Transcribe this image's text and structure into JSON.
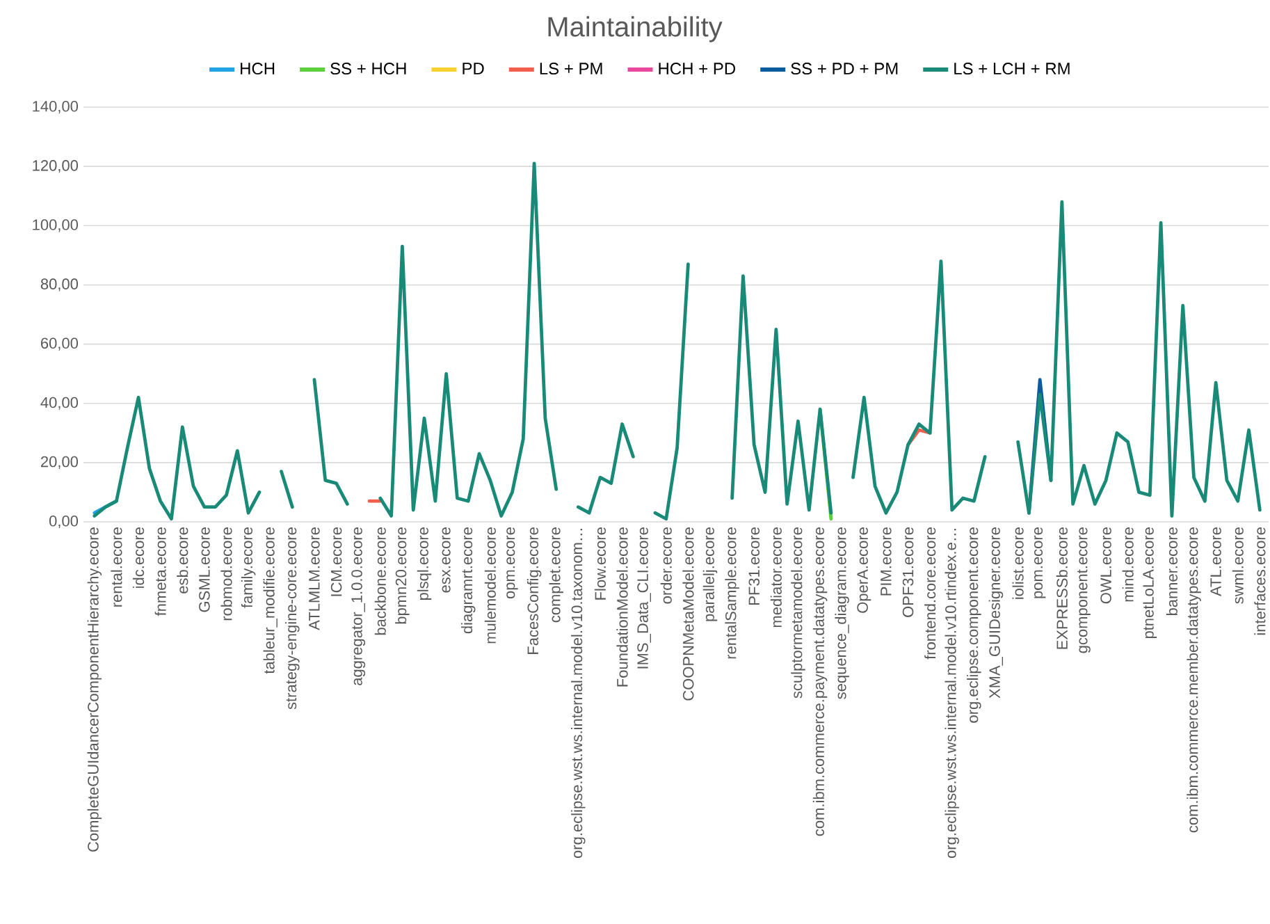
{
  "chart_data": {
    "type": "line",
    "title": "Maintainability",
    "categories": [
      "CompleteGUIdancerComponentHierarchy.ecore",
      null,
      "rental.ecore",
      null,
      "idc.ecore",
      null,
      "fnmeta.ecore",
      null,
      "esb.ecore",
      null,
      "GSML.ecore",
      null,
      "robmod.ecore",
      null,
      "family.ecore",
      null,
      "tableur_modifie.ecore",
      null,
      "strategy-engine-core.ecore",
      null,
      "ATLMLM.ecore",
      null,
      "ICM.ecore",
      null,
      "aggregator_1.0.0.ecore",
      null,
      "backbone.ecore",
      null,
      "bpmn20.ecore",
      null,
      "plsql.ecore",
      null,
      "esx.ecore",
      null,
      "diagramrt.ecore",
      null,
      "mulemodel.ecore",
      null,
      "opm.ecore",
      null,
      "FacesConfig.ecore",
      null,
      "complet.ecore",
      null,
      "org.eclipse.wst.ws.internal.model.v10.taxonom…",
      null,
      "Flow.ecore",
      null,
      "FoundationModel.ecore",
      null,
      "IMS_Data_CLI.ecore",
      null,
      "order.ecore",
      null,
      "COOPNMetaModel.ecore",
      null,
      "parallelj.ecore",
      null,
      "rentalSample.ecore",
      null,
      "PF31.ecore",
      null,
      "mediator.ecore",
      null,
      "sculptormetamodel.ecore",
      null,
      "com.ibm.commerce.payment.datatypes.ecore",
      null,
      "sequence_diagram.ecore",
      null,
      "OperA.ecore",
      null,
      "PIM.ecore",
      null,
      "OPF31.ecore",
      null,
      "frontend.core.ecore",
      null,
      "org.eclipse.wst.ws.internal.model.v10.rtindex.e…",
      null,
      "org.eclipse.component.ecore",
      null,
      "XMA_GUIDesigner.ecore",
      null,
      "iolist.ecore",
      null,
      "pom.ecore",
      null,
      "EXPRESSb.ecore",
      null,
      "gcomponent.ecore",
      null,
      "OWL.ecore",
      null,
      "mind.ecore",
      null,
      "ptnetLoLA.ecore",
      null,
      "banner.ecore",
      null,
      "com.ibm.commerce.member.datatypes.ecore",
      null,
      "ATL.ecore",
      null,
      "swml.ecore",
      null,
      "interfaces.ecore"
    ],
    "series": [
      {
        "name": "HCH",
        "color": "#1fa3e6",
        "values": [
          3,
          5,
          7,
          null,
          null,
          null,
          null,
          null,
          null,
          null,
          null,
          null,
          null,
          null,
          null,
          null,
          null,
          null,
          null,
          null,
          null,
          null,
          null,
          null,
          null,
          null,
          null,
          null,
          null,
          null,
          null,
          null,
          null,
          null,
          null,
          null,
          null,
          null,
          null,
          null,
          null,
          null,
          null,
          null,
          null,
          null,
          null,
          null,
          null,
          null,
          null,
          null,
          null,
          null,
          null,
          null,
          null,
          null,
          null,
          null,
          null,
          null,
          null,
          null,
          null,
          null,
          null,
          null,
          null,
          null,
          null,
          null,
          null,
          null,
          null,
          null,
          null,
          null,
          null,
          null,
          null,
          null,
          null,
          null,
          null,
          null,
          null,
          null,
          null,
          null,
          null,
          null,
          null,
          null,
          null,
          null,
          null,
          null,
          null,
          null,
          null,
          null,
          null,
          null,
          null,
          null,
          null
        ]
      },
      {
        "name": "SS + HCH",
        "color": "#5ccf3c",
        "values": [
          null,
          null,
          null,
          null,
          null,
          null,
          null,
          null,
          null,
          null,
          null,
          null,
          null,
          null,
          null,
          null,
          null,
          null,
          null,
          null,
          null,
          null,
          null,
          null,
          null,
          null,
          null,
          null,
          null,
          null,
          null,
          null,
          null,
          null,
          null,
          null,
          null,
          null,
          null,
          null,
          null,
          null,
          null,
          null,
          null,
          null,
          null,
          null,
          null,
          null,
          null,
          null,
          null,
          null,
          null,
          null,
          null,
          null,
          null,
          null,
          null,
          null,
          null,
          null,
          null,
          null,
          38,
          1,
          null,
          null,
          null,
          null,
          null,
          null,
          null,
          null,
          null,
          null,
          null,
          null,
          null,
          null,
          null,
          null,
          null,
          null,
          null,
          null,
          null,
          null,
          null,
          null,
          null,
          null,
          null,
          null,
          null,
          null,
          null,
          null,
          null,
          null,
          null,
          null,
          null,
          null,
          null
        ]
      },
      {
        "name": "PD",
        "color": "#f7cf30",
        "values": [
          null,
          null,
          null,
          null,
          null,
          null,
          null,
          null,
          null,
          null,
          null,
          null,
          null,
          null,
          null,
          null,
          null,
          null,
          null,
          null,
          null,
          null,
          null,
          null,
          null,
          null,
          null,
          null,
          null,
          null,
          null,
          null,
          null,
          null,
          null,
          null,
          null,
          null,
          null,
          null,
          null,
          null,
          null,
          null,
          null,
          null,
          null,
          null,
          null,
          null,
          null,
          null,
          null,
          null,
          null,
          null,
          null,
          null,
          null,
          null,
          null,
          null,
          null,
          null,
          null,
          null,
          null,
          null,
          null,
          null,
          null,
          null,
          null,
          null,
          null,
          null,
          null,
          null,
          null,
          null,
          null,
          null,
          null,
          null,
          null,
          null,
          null,
          null,
          null,
          null,
          null,
          null,
          null,
          null,
          null,
          null,
          null,
          null,
          null,
          null,
          null,
          null,
          null,
          null,
          null,
          null,
          null
        ]
      },
      {
        "name": "LS + PM",
        "color": "#f05f4c",
        "values": [
          null,
          null,
          null,
          null,
          null,
          null,
          null,
          null,
          null,
          null,
          null,
          null,
          null,
          null,
          null,
          null,
          null,
          null,
          null,
          null,
          null,
          null,
          null,
          null,
          null,
          7,
          7,
          null,
          null,
          null,
          null,
          null,
          null,
          null,
          null,
          null,
          null,
          null,
          null,
          null,
          null,
          null,
          null,
          null,
          null,
          null,
          null,
          null,
          null,
          null,
          null,
          null,
          null,
          null,
          null,
          null,
          null,
          null,
          null,
          null,
          null,
          null,
          null,
          null,
          null,
          null,
          null,
          null,
          null,
          null,
          null,
          null,
          null,
          null,
          26,
          31,
          30,
          null,
          null,
          null,
          null,
          null,
          null,
          null,
          null,
          null,
          null,
          null,
          null,
          null,
          null,
          null,
          null,
          null,
          null,
          null,
          null,
          null,
          null,
          null,
          null,
          null,
          null,
          null,
          null,
          null,
          null
        ]
      },
      {
        "name": "HCH + PD",
        "color": "#e8479a",
        "values": [
          null,
          null,
          null,
          null,
          null,
          null,
          null,
          null,
          null,
          null,
          null,
          null,
          null,
          null,
          null,
          null,
          null,
          null,
          null,
          null,
          null,
          null,
          null,
          null,
          null,
          null,
          null,
          null,
          null,
          null,
          null,
          null,
          null,
          null,
          null,
          null,
          null,
          null,
          null,
          null,
          null,
          null,
          null,
          null,
          null,
          null,
          null,
          null,
          null,
          null,
          null,
          null,
          null,
          null,
          null,
          null,
          null,
          null,
          null,
          null,
          null,
          null,
          null,
          null,
          null,
          null,
          null,
          null,
          null,
          null,
          null,
          null,
          null,
          null,
          null,
          null,
          null,
          null,
          null,
          null,
          null,
          null,
          null,
          null,
          null,
          null,
          null,
          null,
          null,
          null,
          null,
          null,
          null,
          null,
          null,
          null,
          null,
          null,
          null,
          null,
          null,
          null,
          null,
          null,
          null,
          null,
          null
        ]
      },
      {
        "name": "SS + PD + PM",
        "color": "#0b5c9e",
        "values": [
          null,
          null,
          null,
          null,
          null,
          null,
          null,
          null,
          null,
          null,
          null,
          null,
          null,
          null,
          null,
          null,
          null,
          null,
          null,
          null,
          null,
          null,
          null,
          null,
          null,
          null,
          null,
          null,
          null,
          null,
          null,
          null,
          null,
          null,
          null,
          null,
          null,
          null,
          null,
          null,
          null,
          null,
          null,
          null,
          null,
          null,
          null,
          null,
          null,
          null,
          null,
          null,
          null,
          null,
          null,
          null,
          null,
          null,
          null,
          null,
          null,
          null,
          null,
          null,
          null,
          null,
          null,
          null,
          null,
          null,
          null,
          null,
          null,
          null,
          null,
          null,
          null,
          null,
          null,
          null,
          null,
          null,
          null,
          null,
          null,
          3,
          48,
          14,
          null,
          null,
          null,
          null,
          null,
          null,
          null,
          null,
          null,
          null,
          null,
          null,
          null,
          null,
          null,
          null,
          null,
          null,
          null
        ]
      },
      {
        "name": "LS + LCH + RM",
        "color": "#1a8a78",
        "values": [
          2,
          5,
          7,
          25,
          42,
          18,
          7,
          1,
          32,
          12,
          5,
          5,
          9,
          24,
          3,
          10,
          null,
          17,
          5,
          null,
          48,
          14,
          13,
          6,
          null,
          null,
          8,
          2,
          93,
          4,
          35,
          7,
          50,
          8,
          7,
          23,
          14,
          2,
          10,
          28,
          121,
          35,
          11,
          null,
          5,
          3,
          15,
          13,
          33,
          22,
          null,
          3,
          1,
          25,
          87,
          null,
          null,
          null,
          8,
          83,
          26,
          10,
          65,
          6,
          34,
          4,
          38,
          3,
          null,
          15,
          42,
          12,
          3,
          10,
          26,
          33,
          30,
          88,
          4,
          8,
          7,
          22,
          null,
          null,
          27,
          3,
          43,
          14,
          108,
          6,
          19,
          6,
          14,
          30,
          27,
          10,
          9,
          101,
          2,
          73,
          15,
          7,
          47,
          14,
          7,
          31,
          4
        ]
      }
    ],
    "ylim": [
      0,
      140
    ],
    "yticks": [
      {
        "value": 0,
        "label": "0,00"
      },
      {
        "value": 20,
        "label": "20,00"
      },
      {
        "value": 40,
        "label": "40,00"
      },
      {
        "value": 60,
        "label": "60,00"
      },
      {
        "value": 80,
        "label": "80,00"
      },
      {
        "value": 100,
        "label": "100,00"
      },
      {
        "value": 120,
        "label": "120,00"
      },
      {
        "value": 140,
        "label": "140,00"
      }
    ],
    "grid": "y",
    "legend": "top",
    "marker": "none",
    "line_style": "solid"
  }
}
